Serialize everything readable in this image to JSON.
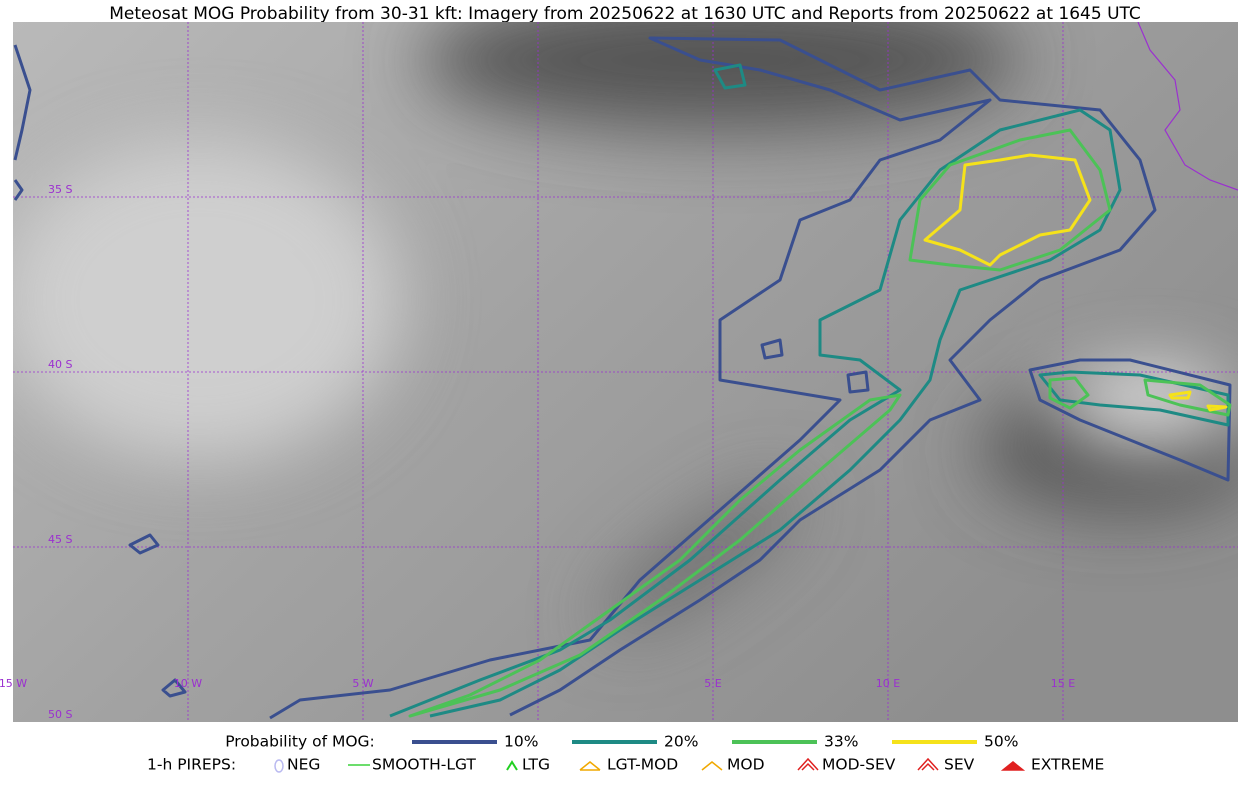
{
  "header": {
    "title": "Meteosat MOG Probability from 30-31 kft: Imagery from 20250622 at 1630 UTC and Reports from 20250622 at 1645 UTC"
  },
  "map": {
    "lat_labels": [
      "35 S",
      "40 S",
      "45 S",
      "50 S"
    ],
    "lon_labels": [
      "15 W",
      "10 W",
      "5 W",
      "5 E",
      "10 E",
      "15 E"
    ]
  },
  "legend": {
    "probability": {
      "title": "Probability of MOG:",
      "items": [
        {
          "label": "10%",
          "color": "#3a4f8f"
        },
        {
          "label": "20%",
          "color": "#1e8a84"
        },
        {
          "label": "33%",
          "color": "#4cc257"
        },
        {
          "label": "50%",
          "color": "#f5e21a"
        }
      ]
    },
    "pireps": {
      "title": "1-h PIREPS:",
      "items": [
        "NEG",
        "SMOOTH-LGT",
        "LTG",
        "LGT-MOD",
        "MOD",
        "MOD-SEV",
        "SEV",
        "EXTREME"
      ]
    }
  }
}
